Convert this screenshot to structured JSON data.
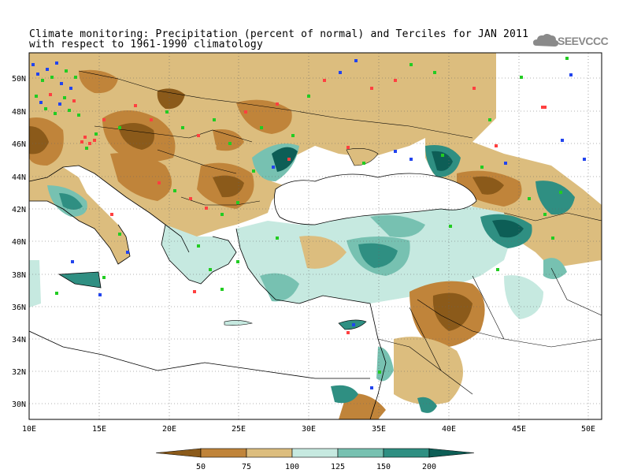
{
  "title": {
    "line1": "Climate monitoring: Precipitation (percent of normal) and Terciles for JAN 2011",
    "line2": "with respect to 1961-1990 climatology"
  },
  "logo": {
    "text": "SEEVCCC",
    "icon": "cloud-icon"
  },
  "axes": {
    "lat_labels": [
      "50N",
      "48N",
      "46N",
      "44N",
      "42N",
      "40N",
      "38N",
      "36N",
      "34N",
      "32N",
      "30N"
    ],
    "lon_labels": [
      "10E",
      "15E",
      "20E",
      "25E",
      "30E",
      "35E",
      "40E",
      "45E",
      "50E"
    ]
  },
  "colorbar": {
    "labels": [
      "50",
      "75",
      "100",
      "125",
      "150",
      "200"
    ],
    "colors": [
      "#8b5a1a",
      "#c0843a",
      "#dcbd7e",
      "#c6e9e0",
      "#77c1b1",
      "#2f8f82",
      "#0d5e56"
    ]
  },
  "colors": {
    "sea": "#ffffff",
    "station_dry": "#ff4040",
    "station_normal": "#22cc22",
    "station_wet": "#2244ee"
  },
  "chart_data": {
    "type": "map",
    "region": "South-East Europe and Middle East",
    "lat_range": [
      29,
      51.5
    ],
    "lon_range": [
      10,
      51
    ],
    "colorbar_thresholds_percent": [
      50,
      75,
      100,
      125,
      150,
      200
    ],
    "legend_units": "percent of normal"
  }
}
